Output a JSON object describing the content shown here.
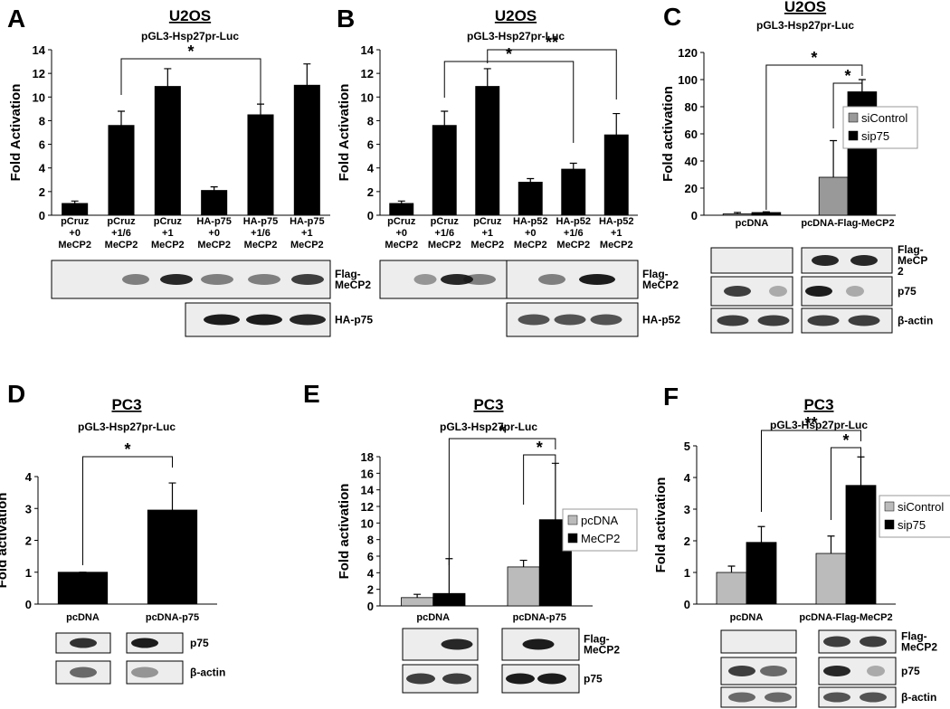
{
  "chart_data": [
    {
      "type": "bar",
      "panel": "A",
      "title": "U2OS",
      "subtitle": "pGL3-Hsp27pr-Luc",
      "y_label": "Fold Activation",
      "categories": [
        "pCruz\n+0\nMeCP2",
        "pCruz\n+1/6\nMeCP2",
        "pCruz\n+1\nMeCP2",
        "HA-p75\n+0\nMeCP2",
        "HA-p75\n+1/6\nMeCP2",
        "HA-p75\n+1\nMeCP2"
      ],
      "values": [
        1.0,
        7.6,
        10.9,
        2.1,
        8.5,
        11.0
      ],
      "errors": [
        0.2,
        1.2,
        1.5,
        0.3,
        0.9,
        1.8
      ],
      "color": "#000000",
      "ylim": [
        0,
        14
      ],
      "yticks": [
        0,
        2,
        4,
        6,
        8,
        10,
        12,
        14
      ],
      "annotations": [
        "*"
      ],
      "blot_labels": [
        "Flag-\nMeCP2",
        "HA-p75"
      ]
    },
    {
      "type": "bar",
      "panel": "B",
      "title": "U2OS",
      "subtitle": "pGL3-Hsp27pr-Luc",
      "y_label": "Fold Activation",
      "categories": [
        "pCruz\n+0\nMeCP2",
        "pCruz\n+1/6\nMeCP2",
        "pCruz\n+1\nMeCP2",
        "HA-p52\n+0\nMeCP2",
        "HA-p52\n+1/6\nMeCP2",
        "HA-p52\n+1\nMeCP2"
      ],
      "values": [
        1.0,
        7.6,
        10.9,
        2.8,
        3.9,
        6.8
      ],
      "errors": [
        0.2,
        1.2,
        1.5,
        0.3,
        0.5,
        1.8
      ],
      "color": "#000000",
      "ylim": [
        0,
        14
      ],
      "yticks": [
        0,
        2,
        4,
        6,
        8,
        10,
        12,
        14
      ],
      "annotations": [
        "*",
        "**"
      ],
      "blot_labels": [
        "Flag-\nMeCP2",
        "HA-p52"
      ]
    },
    {
      "type": "grouped_bar",
      "panel": "C",
      "title": "U2OS",
      "subtitle": "pGL3-Hsp27pr-Luc",
      "y_label": "Fold activation",
      "categories": [
        "pcDNA",
        "pcDNA-Flag-MeCP2"
      ],
      "series": [
        {
          "name": "siControl",
          "color": "#999999",
          "values": [
            1,
            28
          ],
          "errors": [
            1,
            27
          ]
        },
        {
          "name": "sip75",
          "color": "#000000",
          "values": [
            2,
            91
          ],
          "errors": [
            0.5,
            9
          ]
        }
      ],
      "ylim": [
        0,
        120
      ],
      "yticks": [
        0,
        20,
        40,
        60,
        80,
        100,
        120
      ],
      "annotations": [
        "*",
        "*"
      ],
      "blot_labels": [
        "Flag-\nMeCP\n2",
        "p75",
        "β-actin"
      ]
    },
    {
      "type": "bar",
      "panel": "D",
      "title": "PC3",
      "subtitle": "pGL3-Hsp27pr-Luc",
      "y_label": "Fold activation",
      "categories": [
        "pcDNA",
        "pcDNA-p75"
      ],
      "values": [
        1.0,
        2.95
      ],
      "errors": [
        0,
        0.85
      ],
      "color": "#000000",
      "ylim": [
        0,
        4
      ],
      "yticks": [
        0,
        1,
        2,
        3,
        4
      ],
      "annotations": [
        "*"
      ],
      "blot_labels": [
        "p75",
        "β-actin"
      ]
    },
    {
      "type": "grouped_bar",
      "panel": "E",
      "title": "PC3",
      "subtitle": "pGL3-Hsp27pr-Luc",
      "y_label": "Fold activation",
      "categories": [
        "pcDNA",
        "pcDNA-p75"
      ],
      "series": [
        {
          "name": "pcDNA",
          "color": "#bbbbbb",
          "values": [
            1.0,
            4.7
          ],
          "errors": [
            0.4,
            0.8
          ]
        },
        {
          "name": "MeCP2",
          "color": "#000000",
          "values": [
            1.5,
            10.4
          ],
          "errors": [
            4.2,
            6.8
          ]
        }
      ],
      "ylim": [
        0,
        18
      ],
      "yticks": [
        0,
        2,
        4,
        6,
        8,
        10,
        12,
        14,
        16,
        18
      ],
      "annotations": [
        "*",
        "*"
      ],
      "blot_labels": [
        "Flag-\nMeCP2",
        "p75"
      ]
    },
    {
      "type": "grouped_bar",
      "panel": "F",
      "title": "PC3",
      "subtitle": "pGL3-Hsp27pr-Luc",
      "y_label": "Fold activation",
      "categories": [
        "pcDNA",
        "pcDNA-Flag-MeCP2"
      ],
      "series": [
        {
          "name": "siControl",
          "color": "#bbbbbb",
          "values": [
            1.0,
            1.6
          ],
          "errors": [
            0.2,
            0.55
          ]
        },
        {
          "name": "sip75",
          "color": "#000000",
          "values": [
            1.95,
            3.75
          ],
          "errors": [
            0.5,
            0.9
          ]
        }
      ],
      "ylim": [
        0,
        5
      ],
      "yticks": [
        0,
        1,
        2,
        3,
        4,
        5
      ],
      "annotations": [
        "**",
        "*"
      ],
      "blot_labels": [
        "Flag-\nMeCP2",
        "p75",
        "β-actin"
      ]
    }
  ]
}
